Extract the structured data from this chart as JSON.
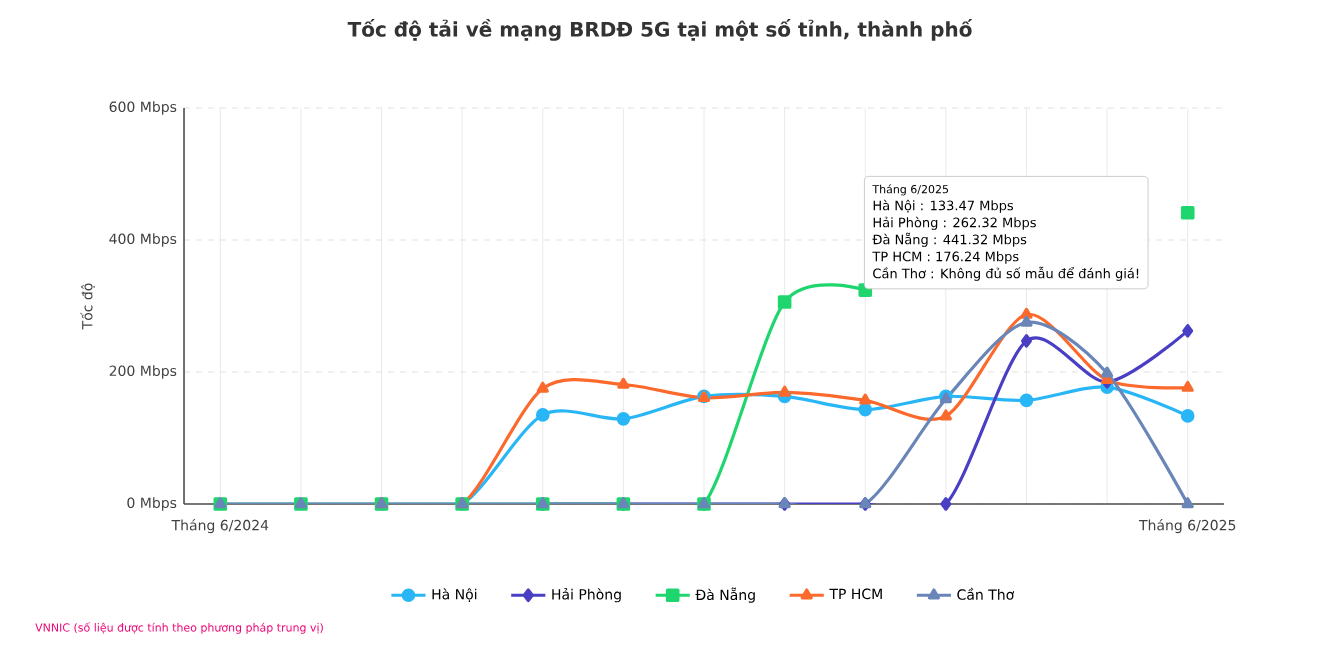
{
  "chart_data": {
    "type": "line",
    "title": "Tốc độ tải về mạng BRDĐ 5G tại một số tỉnh, thành phố",
    "ylabel": "Tốc độ",
    "categories": [
      "Tháng 6/2024",
      null,
      null,
      null,
      null,
      null,
      null,
      null,
      null,
      null,
      null,
      null,
      "Tháng 6/2025"
    ],
    "series": [
      {
        "name": "Hà Nội",
        "color": "#29b6f6",
        "marker": "circle",
        "values": [
          null,
          null,
          0,
          0,
          135,
          129,
          163,
          163,
          143,
          163,
          157,
          177,
          133.47
        ]
      },
      {
        "name": "Hải Phòng",
        "color": "#4a3fc4",
        "marker": "diamond",
        "values": [
          null,
          null,
          null,
          null,
          0,
          0,
          0,
          0,
          0,
          0,
          247,
          185,
          262.32
        ]
      },
      {
        "name": "Đà Nẵng",
        "color": "#1fd66e",
        "marker": "square",
        "values": [
          0,
          0,
          0,
          0,
          0,
          0,
          0,
          306,
          324,
          null,
          null,
          null,
          441.32
        ]
      },
      {
        "name": "TP HCM",
        "color": "#fb6a2c",
        "marker": "triangle",
        "values": [
          null,
          null,
          0,
          0,
          175,
          181,
          161,
          169,
          157,
          133,
          287,
          188,
          176.24
        ]
      },
      {
        "name": "Cần Thơ",
        "color": "#6a86b8",
        "marker": "triangle",
        "values": [
          0,
          0,
          0,
          0,
          0,
          0,
          0,
          0,
          0,
          159,
          275,
          198,
          0
        ]
      }
    ],
    "ylim": [
      0,
      600
    ],
    "yticks": [
      {
        "value": 0,
        "label": "0 Mbps"
      },
      {
        "value": 200,
        "label": "200 Mbps"
      },
      {
        "value": 400,
        "label": "400 Mbps"
      },
      {
        "value": 600,
        "label": "600 Mbps"
      }
    ],
    "grid": true,
    "legend": "bottom",
    "line_style": "solid",
    "annotations": [
      "Tháng 6/2025",
      "Hà Nội : 133.47 Mbps",
      "Hải Phòng : 262.32 Mbps",
      "Đà Nẵng : 441.32 Mbps",
      "TP HCM : 176.24 Mbps",
      "Cần Thơ : Không đủ số mẫu để đánh giá!",
      "VNNIC (số liệu được tính theo phương pháp trung vị)"
    ]
  }
}
